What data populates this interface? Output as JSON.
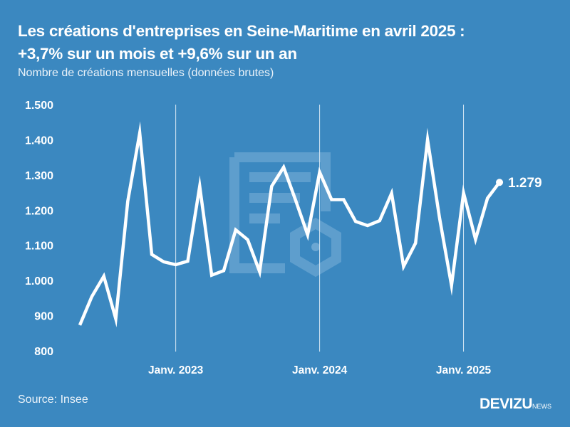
{
  "header": {
    "title_line1": "Les créations d'entreprises en Seine-Maritime en avril 2025 :",
    "title_line2": "+3,7% sur un mois et +9,6% sur un an",
    "subtitle": "Nombre de créations mensuelles (données brutes)"
  },
  "footer": {
    "source": "Source: Insee",
    "brand": "DEVIZU",
    "brand_suffix": "NEWS"
  },
  "colors": {
    "background": "#3b88c0",
    "line": "#ffffff",
    "watermark": "#6ba6d2"
  },
  "chart_data": {
    "type": "line",
    "title": "Les créations d'entreprises en Seine-Maritime en avril 2025 : +3,7% sur un mois et +9,6% sur un an",
    "ylabel": "Nombre de créations mensuelles (données brutes)",
    "xlabel": "",
    "ylim": [
      800,
      1500
    ],
    "yticks": [
      800,
      900,
      1000,
      1100,
      1200,
      1300,
      1400,
      1500
    ],
    "ytick_labels": [
      "800",
      "900",
      "1.000",
      "1.100",
      "1.200",
      "1.300",
      "1.400",
      "1.500"
    ],
    "xticks": [
      {
        "index": 8,
        "label": "Janv. 2023"
      },
      {
        "index": 20,
        "label": "Janv. 2024"
      },
      {
        "index": 32,
        "label": "Janv. 2025"
      }
    ],
    "grid": "vertical at January",
    "x": [
      "2022-05",
      "2022-06",
      "2022-07",
      "2022-08",
      "2022-09",
      "2022-10",
      "2022-11",
      "2022-12",
      "2023-01",
      "2023-02",
      "2023-03",
      "2023-04",
      "2023-05",
      "2023-06",
      "2023-07",
      "2023-08",
      "2023-09",
      "2023-10",
      "2023-11",
      "2023-12",
      "2024-01",
      "2024-02",
      "2024-03",
      "2024-04",
      "2024-05",
      "2024-06",
      "2024-07",
      "2024-08",
      "2024-09",
      "2024-10",
      "2024-11",
      "2024-12",
      "2025-01",
      "2025-02",
      "2025-03",
      "2025-04"
    ],
    "series": [
      {
        "name": "Créations mensuelles",
        "values": [
          873,
          954,
          1012,
          891,
          1225,
          1419,
          1074,
          1053,
          1045,
          1055,
          1268,
          1015,
          1028,
          1144,
          1116,
          1025,
          1268,
          1322,
          1228,
          1130,
          1308,
          1230,
          1230,
          1168,
          1156,
          1170,
          1248,
          1040,
          1106,
          1400,
          1178,
          986,
          1249,
          1117,
          1234,
          1279
        ]
      }
    ],
    "last_value_label": "1.279"
  }
}
